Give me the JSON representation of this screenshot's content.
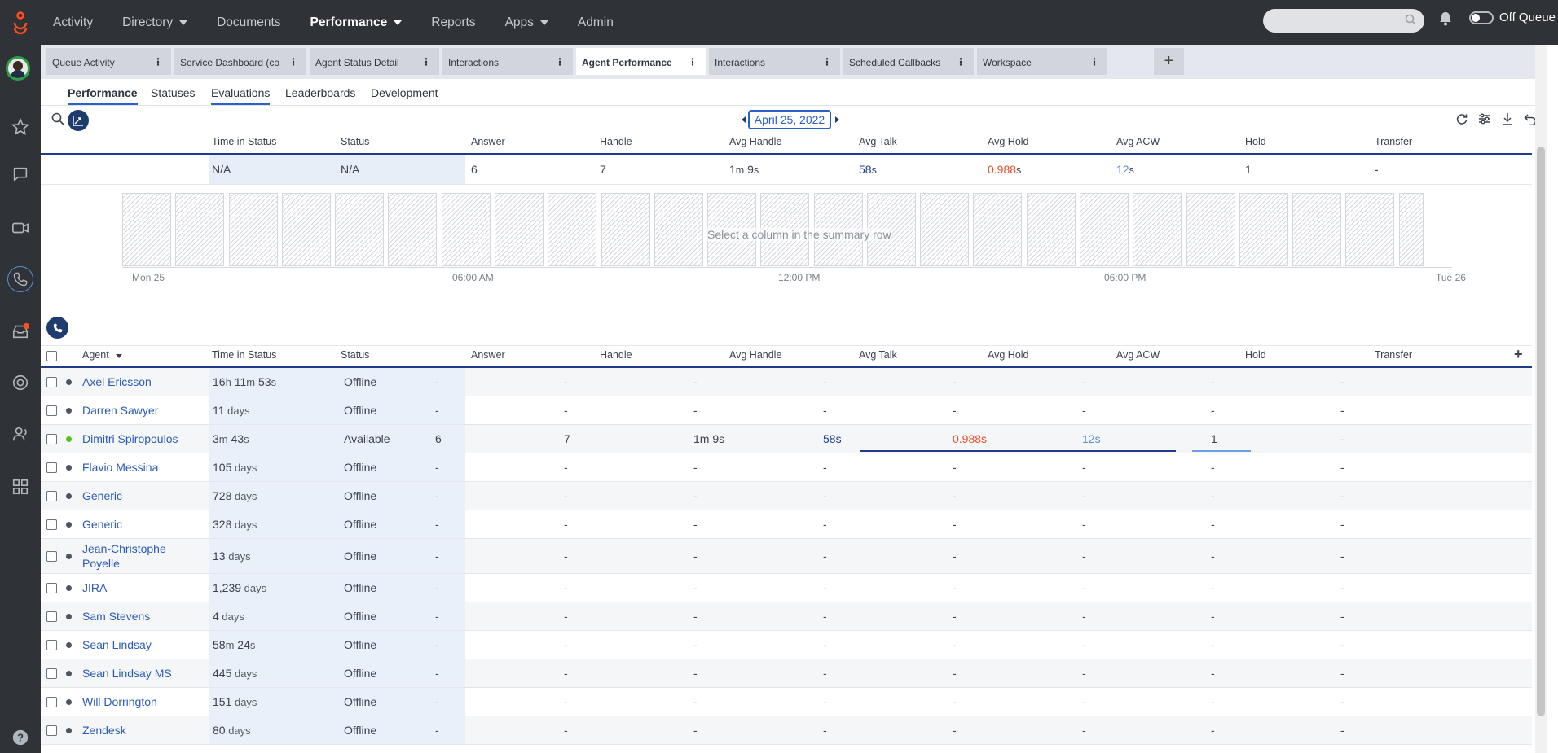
{
  "topnav": {
    "items": [
      {
        "label": "Activity",
        "has_caret": false,
        "active": false
      },
      {
        "label": "Directory",
        "has_caret": true,
        "active": false
      },
      {
        "label": "Documents",
        "has_caret": false,
        "active": false
      },
      {
        "label": "Performance",
        "has_caret": true,
        "active": true
      },
      {
        "label": "Reports",
        "has_caret": false,
        "active": false
      },
      {
        "label": "Apps",
        "has_caret": true,
        "active": false
      },
      {
        "label": "Admin",
        "has_caret": false,
        "active": false
      }
    ],
    "queue_label": "Off Queue",
    "search_placeholder": ""
  },
  "workspace_tabs": [
    {
      "label": "Queue Activity",
      "active": false
    },
    {
      "label": "Service Dashboard (co",
      "active": false
    },
    {
      "label": "Agent Status Detail",
      "active": false
    },
    {
      "label": "Interactions",
      "active": false
    },
    {
      "label": "Agent Performance",
      "active": true
    },
    {
      "label": "Interactions",
      "active": false
    },
    {
      "label": "Scheduled Callbacks",
      "active": false
    },
    {
      "label": "Workspace",
      "active": false
    }
  ],
  "add_tab_label": "+",
  "subtabs": [
    {
      "label": "Performance",
      "active": true
    },
    {
      "label": "Statuses",
      "active": false
    },
    {
      "label": "Evaluations",
      "active": false
    },
    {
      "label": "Leaderboards",
      "active": false
    },
    {
      "label": "Development",
      "active": false
    }
  ],
  "date": "April 25, 2022",
  "columns": [
    "Time in Status",
    "Status",
    "Answer",
    "Handle",
    "Avg Handle",
    "Avg Talk",
    "Avg Hold",
    "Avg ACW",
    "Hold",
    "Transfer"
  ],
  "agent_column": "Agent",
  "summary": {
    "time_in_status": "N/A",
    "status": "N/A",
    "answer": "6",
    "handle": "7",
    "avg_handle": {
      "a": "1",
      "au": "m",
      "b": " 9",
      "bu": "s"
    },
    "avg_talk": {
      "n": "58",
      "u": "s"
    },
    "avg_hold": {
      "n": "0.988",
      "u": "s"
    },
    "avg_acw": {
      "n": "12",
      "u": "s"
    },
    "hold": "1",
    "transfer": "-"
  },
  "chart": {
    "message": "Select a column in the summary row",
    "bar_count": 25,
    "x_ticks": [
      "Mon 25",
      "06:00 AM",
      "12:00 PM",
      "06:00 PM",
      "Tue 26"
    ]
  },
  "agents": [
    {
      "name": "Axel Ericsson",
      "status": "Offline",
      "available": false,
      "tis": [
        [
          "16",
          "h"
        ],
        [
          " 11",
          "m"
        ],
        [
          " 53",
          "s"
        ]
      ],
      "answer": "-",
      "handle": "-",
      "avg_handle": "-",
      "avg_talk": "-",
      "avg_hold": "-",
      "avg_acw": "-",
      "hold": "-",
      "transfer": "-"
    },
    {
      "name": "Darren Sawyer",
      "status": "Offline",
      "available": false,
      "tis": [
        [
          "11",
          " days"
        ]
      ],
      "answer": "-",
      "handle": "-",
      "avg_handle": "-",
      "avg_talk": "-",
      "avg_hold": "-",
      "avg_acw": "-",
      "hold": "-",
      "transfer": "-"
    },
    {
      "name": "Dimitri Spiropoulos",
      "status": "Available",
      "available": true,
      "tis": [
        [
          "3",
          "m"
        ],
        [
          " 43",
          "s"
        ]
      ],
      "answer": "6",
      "handle": "7",
      "avg_handle": "1m 9s",
      "avg_talk": "58s",
      "avg_hold": "0.988s",
      "avg_acw": "12s",
      "hold": "1",
      "transfer": "-"
    },
    {
      "name": "Flavio Messina",
      "status": "Offline",
      "available": false,
      "tis": [
        [
          "105",
          " days"
        ]
      ],
      "answer": "-",
      "handle": "-",
      "avg_handle": "-",
      "avg_talk": "-",
      "avg_hold": "-",
      "avg_acw": "-",
      "hold": "-",
      "transfer": "-"
    },
    {
      "name": "Generic",
      "status": "Offline",
      "available": false,
      "tis": [
        [
          "728",
          " days"
        ]
      ],
      "answer": "-",
      "handle": "-",
      "avg_handle": "-",
      "avg_talk": "-",
      "avg_hold": "-",
      "avg_acw": "-",
      "hold": "-",
      "transfer": "-"
    },
    {
      "name": "Generic",
      "status": "Offline",
      "available": false,
      "tis": [
        [
          "328",
          " days"
        ]
      ],
      "answer": "-",
      "handle": "-",
      "avg_handle": "-",
      "avg_talk": "-",
      "avg_hold": "-",
      "avg_acw": "-",
      "hold": "-",
      "transfer": "-"
    },
    {
      "name": "Jean-Christophe Poyelle",
      "status": "Offline",
      "available": false,
      "tis": [
        [
          "13",
          " days"
        ]
      ],
      "answer": "-",
      "handle": "-",
      "avg_handle": "-",
      "avg_talk": "-",
      "avg_hold": "-",
      "avg_acw": "-",
      "hold": "-",
      "transfer": "-"
    },
    {
      "name": "JIRA",
      "status": "Offline",
      "available": false,
      "tis": [
        [
          "1,239",
          " days"
        ]
      ],
      "answer": "-",
      "handle": "-",
      "avg_handle": "-",
      "avg_talk": "-",
      "avg_hold": "-",
      "avg_acw": "-",
      "hold": "-",
      "transfer": "-"
    },
    {
      "name": "Sam Stevens",
      "status": "Offline",
      "available": false,
      "tis": [
        [
          "4",
          " days"
        ]
      ],
      "answer": "-",
      "handle": "-",
      "avg_handle": "-",
      "avg_talk": "-",
      "avg_hold": "-",
      "avg_acw": "-",
      "hold": "-",
      "transfer": "-"
    },
    {
      "name": "Sean Lindsay",
      "status": "Offline",
      "available": false,
      "tis": [
        [
          "58",
          "m"
        ],
        [
          " 24",
          "s"
        ]
      ],
      "answer": "-",
      "handle": "-",
      "avg_handle": "-",
      "avg_talk": "-",
      "avg_hold": "-",
      "avg_acw": "-",
      "hold": "-",
      "transfer": "-"
    },
    {
      "name": "Sean Lindsay MS",
      "status": "Offline",
      "available": false,
      "tis": [
        [
          "445",
          " days"
        ]
      ],
      "answer": "-",
      "handle": "-",
      "avg_handle": "-",
      "avg_talk": "-",
      "avg_hold": "-",
      "avg_acw": "-",
      "hold": "-",
      "transfer": "-"
    },
    {
      "name": "Will Dorrington",
      "status": "Offline",
      "available": false,
      "tis": [
        [
          "151",
          " days"
        ]
      ],
      "answer": "-",
      "handle": "-",
      "avg_handle": "-",
      "avg_talk": "-",
      "avg_hold": "-",
      "avg_acw": "-",
      "hold": "-",
      "transfer": "-"
    },
    {
      "name": "Zendesk",
      "status": "Offline",
      "available": false,
      "tis": [
        [
          "80",
          " days"
        ]
      ],
      "answer": "-",
      "handle": "-",
      "avg_handle": "-",
      "avg_talk": "-",
      "avg_hold": "-",
      "avg_acw": "-",
      "hold": "-",
      "transfer": "-"
    }
  ],
  "colors": {
    "accent": "#2a60c8",
    "navy": "#1f3c8a",
    "orange": "#e8502a",
    "light_blue": "#5a8ed8",
    "available": "#52c41a",
    "chrome": "#2f3338"
  },
  "rail_icons": [
    "avatar",
    "star-icon",
    "chat-icon",
    "video-icon",
    "phone-icon",
    "inbox-icon",
    "support-icon",
    "agent-headset-icon",
    "apps-grid-icon",
    "help-icon"
  ]
}
